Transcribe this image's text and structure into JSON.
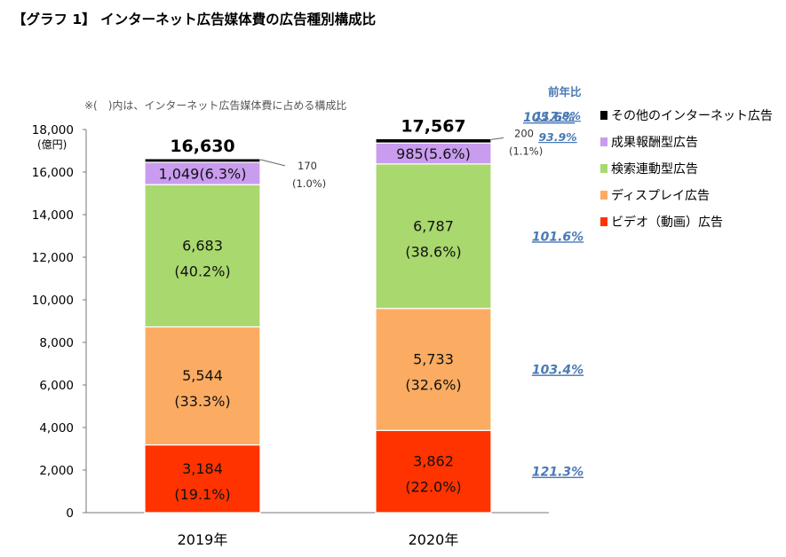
{
  "title": "【グラフ 1】 インターネット広告媒体費の広告種別構成比",
  "chart_data": {
    "type": "bar",
    "stacked": true,
    "note": "※(　)内は、インターネット広告媒体費に占める構成比",
    "ylabel": "(億円)",
    "ylim": [
      0,
      18000
    ],
    "yticks": [
      0,
      2000,
      4000,
      6000,
      8000,
      10000,
      12000,
      14000,
      16000,
      18000
    ],
    "ytick_labels": [
      "0",
      "2,000",
      "4,000",
      "6,000",
      "8,000",
      "10,000",
      "12,000",
      "14,000",
      "16,000",
      "18,000"
    ],
    "categories": [
      "2019年",
      "2020年"
    ],
    "totals": [
      16630,
      17567
    ],
    "total_labels": [
      "16,630",
      "17,567"
    ],
    "series": [
      {
        "name": "ビデオ（動画）広告",
        "color": "#ff3300",
        "values": [
          3184,
          3862
        ],
        "labels": [
          "3,184",
          "3,862"
        ],
        "pct": [
          "(19.1%)",
          "(22.0%)"
        ],
        "yoy": "121.3%"
      },
      {
        "name": "ディスプレイ広告",
        "color": "#fbac62",
        "values": [
          5544,
          5733
        ],
        "labels": [
          "5,544",
          "5,733"
        ],
        "pct": [
          "(33.3%)",
          "(32.6%)"
        ],
        "yoy": "103.4%"
      },
      {
        "name": "検索連動型広告",
        "color": "#a9d86e",
        "values": [
          6683,
          6787
        ],
        "labels": [
          "6,683",
          "6,787"
        ],
        "pct": [
          "(40.2%)",
          "(38.6%)"
        ],
        "yoy": "101.6%"
      },
      {
        "name": "成果報酬型広告",
        "color": "#c99cf0",
        "values": [
          1049,
          985
        ],
        "labels": [
          "1,049(6.3%)",
          "985(5.6%)"
        ],
        "yoy": "93.9%"
      },
      {
        "name": "その他のインターネット広告",
        "color": "#000000",
        "values": [
          170,
          200
        ],
        "labels": [
          "170",
          "200"
        ],
        "pct": [
          "(1.0%)",
          "(1.1%)"
        ],
        "yoy": "117.8%"
      }
    ],
    "yoy_header": "前年比",
    "yoy_total": "105.6%"
  }
}
